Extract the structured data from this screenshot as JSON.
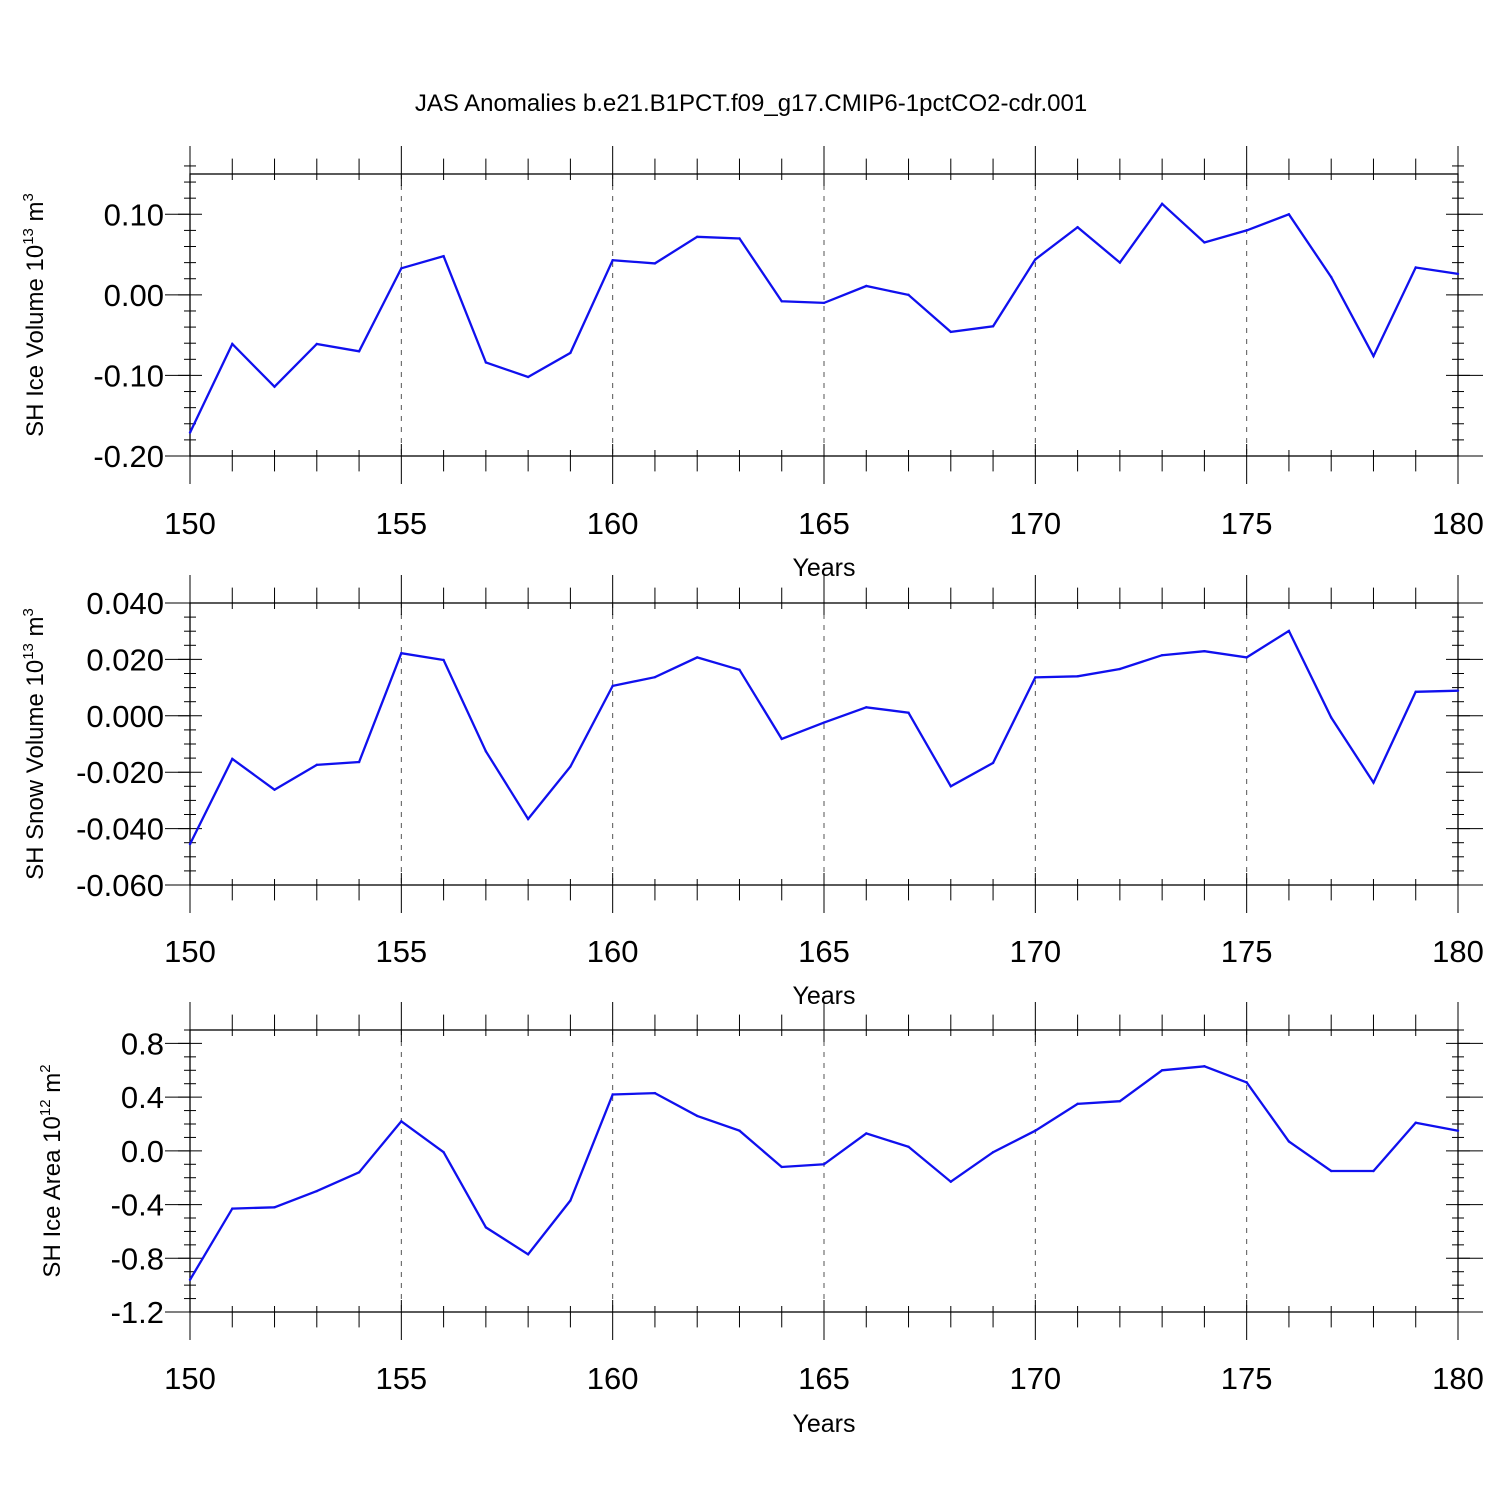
{
  "chart_data": {
    "type": "line",
    "title": "JAS Anomalies b.e21.B1PCT.f09_g17.CMIP6-1pctCO2-cdr.001",
    "line_color": "#1010ee",
    "x": [
      150,
      151,
      152,
      153,
      154,
      155,
      156,
      157,
      158,
      159,
      160,
      161,
      162,
      163,
      164,
      165,
      166,
      167,
      168,
      169,
      170,
      171,
      172,
      173,
      174,
      175,
      176,
      177,
      178,
      179,
      180
    ],
    "panels": [
      {
        "ylabel": {
          "text": "SH Ice Volume 10",
          "exp": "13",
          "unit": " m",
          "unit_exp": "3"
        },
        "xlabel": "Years",
        "xlim": [
          150,
          180
        ],
        "ylim": [
          -0.2,
          0.15
        ],
        "yticks": [
          -0.2,
          -0.1,
          0.0,
          0.1
        ],
        "yticklabels": [
          "-0.20",
          "-0.10",
          "0.00",
          "0.10"
        ],
        "yminor_step": 0.02,
        "xticks": [
          150,
          155,
          160,
          165,
          170,
          175,
          180
        ],
        "xticklabels": [
          "150",
          "155",
          "160",
          "165",
          "170",
          "175",
          "180"
        ],
        "values": [
          -0.171,
          -0.061,
          -0.114,
          -0.061,
          -0.07,
          0.033,
          0.048,
          -0.084,
          -0.102,
          -0.072,
          0.043,
          0.039,
          0.072,
          0.07,
          -0.008,
          -0.01,
          0.011,
          0.0,
          -0.046,
          -0.039,
          0.044,
          0.084,
          0.04,
          0.113,
          0.065,
          0.08,
          0.1,
          0.022,
          -0.076,
          0.034,
          0.026
        ]
      },
      {
        "ylabel": {
          "text": "SH Snow Volume 10",
          "exp": "13",
          "unit": " m",
          "unit_exp": "3"
        },
        "xlabel": "Years",
        "xlim": [
          150,
          180
        ],
        "ylim": [
          -0.06,
          0.04
        ],
        "yticks": [
          -0.06,
          -0.04,
          -0.02,
          0.0,
          0.02,
          0.04
        ],
        "yticklabels": [
          "-0.060",
          "-0.040",
          "-0.020",
          "0.000",
          "0.020",
          "0.040"
        ],
        "yminor_step": 0.005,
        "xticks": [
          150,
          155,
          160,
          165,
          170,
          175,
          180
        ],
        "xticklabels": [
          "150",
          "155",
          "160",
          "165",
          "170",
          "175",
          "180"
        ],
        "values": [
          -0.0455,
          -0.0153,
          -0.0262,
          -0.0174,
          -0.0164,
          0.0222,
          0.0198,
          -0.0126,
          -0.0366,
          -0.018,
          0.0106,
          0.0137,
          0.0207,
          0.0163,
          -0.0082,
          -0.0024,
          0.003,
          0.0011,
          -0.025,
          -0.0167,
          0.0136,
          0.014,
          0.0166,
          0.0215,
          0.0229,
          0.0207,
          0.0301,
          -0.0006,
          -0.0237,
          0.0085,
          0.0089
        ]
      },
      {
        "ylabel": {
          "text": "SH Ice Area 10",
          "exp": "12",
          "unit": " m",
          "unit_exp": "2"
        },
        "xlabel": "Years",
        "xlim": [
          150,
          180
        ],
        "ylim": [
          -1.2,
          0.9
        ],
        "yticks": [
          -1.2,
          -0.8,
          -0.4,
          0.0,
          0.4,
          0.8
        ],
        "yticklabels": [
          "-1.2",
          "-0.8",
          "-0.4",
          "0.0",
          "0.4",
          "0.8"
        ],
        "yminor_step": 0.1,
        "xticks": [
          150,
          155,
          160,
          165,
          170,
          175,
          180
        ],
        "xticklabels": [
          "150",
          "155",
          "160",
          "165",
          "170",
          "175",
          "180"
        ],
        "values": [
          -0.96,
          -0.43,
          -0.42,
          -0.3,
          -0.16,
          0.22,
          -0.01,
          -0.57,
          -0.77,
          -0.37,
          0.42,
          0.43,
          0.26,
          0.15,
          -0.12,
          -0.1,
          0.13,
          0.03,
          -0.23,
          -0.01,
          0.15,
          0.35,
          0.37,
          0.6,
          0.63,
          0.51,
          0.07,
          -0.15,
          -0.15,
          0.21,
          0.15
        ]
      }
    ]
  }
}
